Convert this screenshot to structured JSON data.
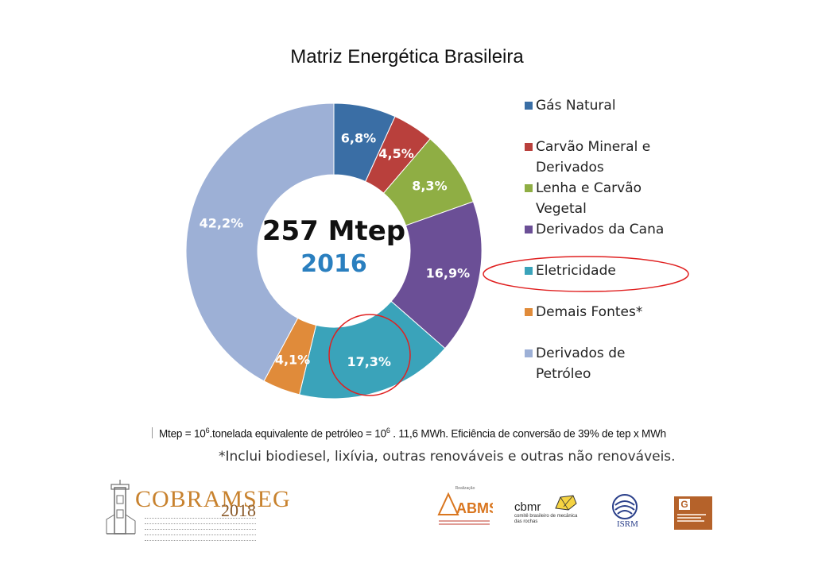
{
  "chart_data": {
    "type": "pie",
    "title": "Matriz Energética Brasileira",
    "center_value": "257 Mtep",
    "center_year": "2016",
    "slices": [
      {
        "name": "Gás Natural",
        "value": 6.8,
        "label": "6,8%",
        "color": "#3a6ea5"
      },
      {
        "name": "Carvão Mineral e Derivados",
        "value": 4.5,
        "label": "4,5%",
        "color": "#b9403c"
      },
      {
        "name": "Lenha e Carvão Vegetal",
        "value": 8.3,
        "label": "8,3%",
        "color": "#8fae44"
      },
      {
        "name": "Derivados da Cana",
        "value": 16.9,
        "label": "16,9%",
        "color": "#6b4f96"
      },
      {
        "name": "Eletricidade",
        "value": 17.3,
        "label": "17,3%",
        "color": "#3aa3ba"
      },
      {
        "name": "Demais Fontes*",
        "value": 4.1,
        "label": "4,1%",
        "color": "#e08b3a"
      },
      {
        "name": "Derivados de Petróleo",
        "value": 42.2,
        "label": "42,2%",
        "color": "#9db0d6"
      }
    ],
    "legend_position": "right",
    "highlight_color": "#e02020"
  },
  "legend_items": [
    {
      "label": "Gás Natural",
      "color": "#3a6ea5"
    },
    {
      "label": "Carvão Mineral e Derivados",
      "color": "#b9403c"
    },
    {
      "label": "Lenha e Carvão Vegetal",
      "color": "#8fae44"
    },
    {
      "label": "Derivados da Cana",
      "color": "#6b4f96"
    },
    {
      "label": "Eletricidade",
      "color": "#3aa3ba"
    },
    {
      "label": "Demais Fontes*",
      "color": "#e08b3a"
    },
    {
      "label": "Derivados de Petróleo",
      "color": "#9db0d6"
    }
  ],
  "formula": {
    "part1": "Mtep = 10",
    "sup1": "6",
    "part2": ".tonelada equivalente de petróleo  = 10",
    "sup2": "6",
    "part3": " . 11,6 MWh. Eficiência de conversão de 39% de tep x MWh"
  },
  "note": "*Inclui biodiesel, lixívia, outras renováveis e outras não renováveis.",
  "logos": {
    "cobramseg": {
      "name": "COBRAMSEG",
      "year": "2018"
    },
    "abms": {
      "caption": "Realização",
      "name": "ABMS"
    },
    "cbmr": {
      "name": "cbmr",
      "subtitle": "comitê brasileiro de mecânica das rochas"
    },
    "isrm": {
      "name": "ISRM"
    },
    "spg": {
      "letter": "G"
    }
  }
}
